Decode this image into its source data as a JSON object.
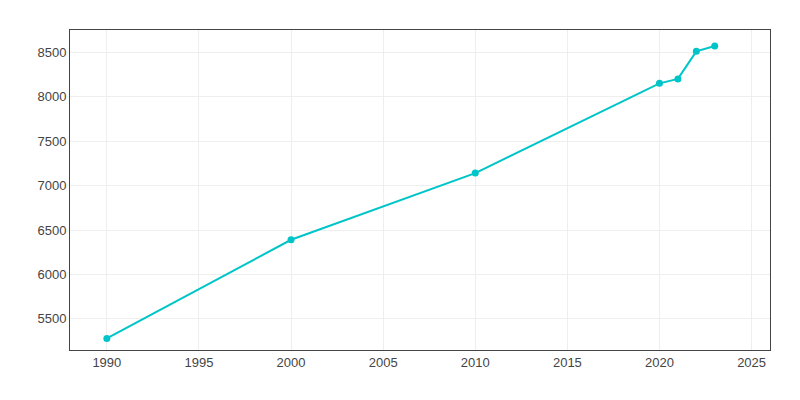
{
  "chart_data": {
    "type": "line",
    "x": [
      1990,
      2000,
      2010,
      2020,
      2021,
      2022,
      2023
    ],
    "values": [
      5280,
      6390,
      7140,
      8150,
      8200,
      8510,
      8570
    ],
    "color": "#00C5C8",
    "marker": "circle",
    "line_style": "solid",
    "xlim": [
      1988,
      2026
    ],
    "ylim": [
      5150,
      8750
    ],
    "xticks": [
      1990,
      1995,
      2000,
      2005,
      2010,
      2015,
      2020,
      2025
    ],
    "yticks": [
      5500,
      6000,
      6500,
      7000,
      7500,
      8000,
      8500
    ],
    "grid": true
  }
}
